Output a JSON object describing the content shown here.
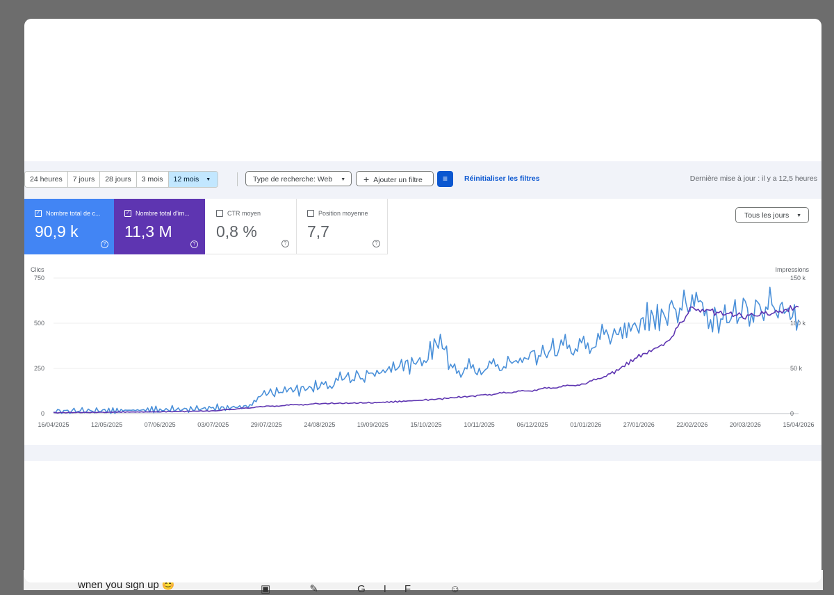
{
  "filters": {
    "ranges": [
      "24 heures",
      "7 jours",
      "28 jours",
      "3 mois",
      "12 mois"
    ],
    "active_range": "12 mois",
    "search_type": "Type de recherche: Web",
    "add_filter": "Ajouter un filtre",
    "reset": "Réinitialiser les filtres",
    "last_update": "Dernière mise à jour : il y a 12,5 heures"
  },
  "metrics": [
    {
      "label": "Nombre total de c...",
      "value": "90,9 k",
      "checked": true,
      "color": "#4285f4"
    },
    {
      "label": "Nombre total d'im...",
      "value": "11,3 M",
      "checked": true,
      "color": "#5e35b1"
    },
    {
      "label": "CTR moyen",
      "value": "0,8 %",
      "checked": false
    },
    {
      "label": "Position moyenne",
      "value": "7,7",
      "checked": false
    }
  ],
  "granularity": "Tous les jours",
  "background": {
    "text": "when you sign up 😊"
  },
  "chart_data": {
    "type": "line",
    "y_left_label": "Clics",
    "y_right_label": "Impressions",
    "y_left_ticks": [
      "0",
      "250",
      "500",
      "750"
    ],
    "y_right_ticks": [
      "0",
      "50 k",
      "100 k",
      "150 k"
    ],
    "y_left_range": [
      0,
      750
    ],
    "y_right_range": [
      0,
      150000
    ],
    "x_ticks": [
      "16/04/2025",
      "12/05/2025",
      "07/06/2025",
      "03/07/2025",
      "29/07/2025",
      "24/08/2025",
      "19/09/2025",
      "15/10/2025",
      "10/11/2025",
      "06/12/2025",
      "01/01/2026",
      "27/01/2026",
      "22/02/2026",
      "20/03/2026",
      "15/04/2026"
    ],
    "grid": true,
    "series": [
      {
        "name": "Nombre total de clics",
        "axis": "left",
        "color": "#4a90d9",
        "x": [
          "16/04/2025",
          "12/05/2025",
          "07/06/2025",
          "03/07/2025",
          "20/07/2025",
          "29/07/2025",
          "08/08/2025",
          "24/08/2025",
          "05/09/2025",
          "19/09/2025",
          "01/10/2025",
          "15/10/2025",
          "22/10/2025",
          "28/10/2025",
          "10/11/2025",
          "25/11/2025",
          "06/12/2025",
          "18/12/2025",
          "01/01/2026",
          "15/01/2026",
          "27/01/2026",
          "10/02/2026",
          "22/02/2026",
          "05/03/2026",
          "20/03/2026",
          "05/04/2026",
          "15/04/2026"
        ],
        "values": [
          12,
          18,
          20,
          28,
          40,
          110,
          130,
          145,
          190,
          215,
          260,
          300,
          420,
          240,
          250,
          280,
          315,
          360,
          380,
          440,
          500,
          560,
          600,
          520,
          560,
          600,
          520
        ]
      },
      {
        "name": "Nombre total d'impressions",
        "axis": "right",
        "color": "#5e35b1",
        "x": [
          "16/04/2025",
          "12/05/2025",
          "07/06/2025",
          "03/07/2025",
          "29/07/2025",
          "24/08/2025",
          "19/09/2025",
          "15/10/2025",
          "10/11/2025",
          "06/12/2025",
          "01/01/2026",
          "15/01/2026",
          "27/01/2026",
          "10/02/2026",
          "22/02/2026",
          "05/03/2026",
          "20/03/2026",
          "05/04/2026",
          "15/04/2026"
        ],
        "values": [
          1000,
          1500,
          2000,
          3000,
          8000,
          11000,
          12000,
          15000,
          20000,
          26000,
          33000,
          46000,
          63000,
          79000,
          118000,
          112000,
          108000,
          112000,
          118000
        ]
      }
    ]
  }
}
